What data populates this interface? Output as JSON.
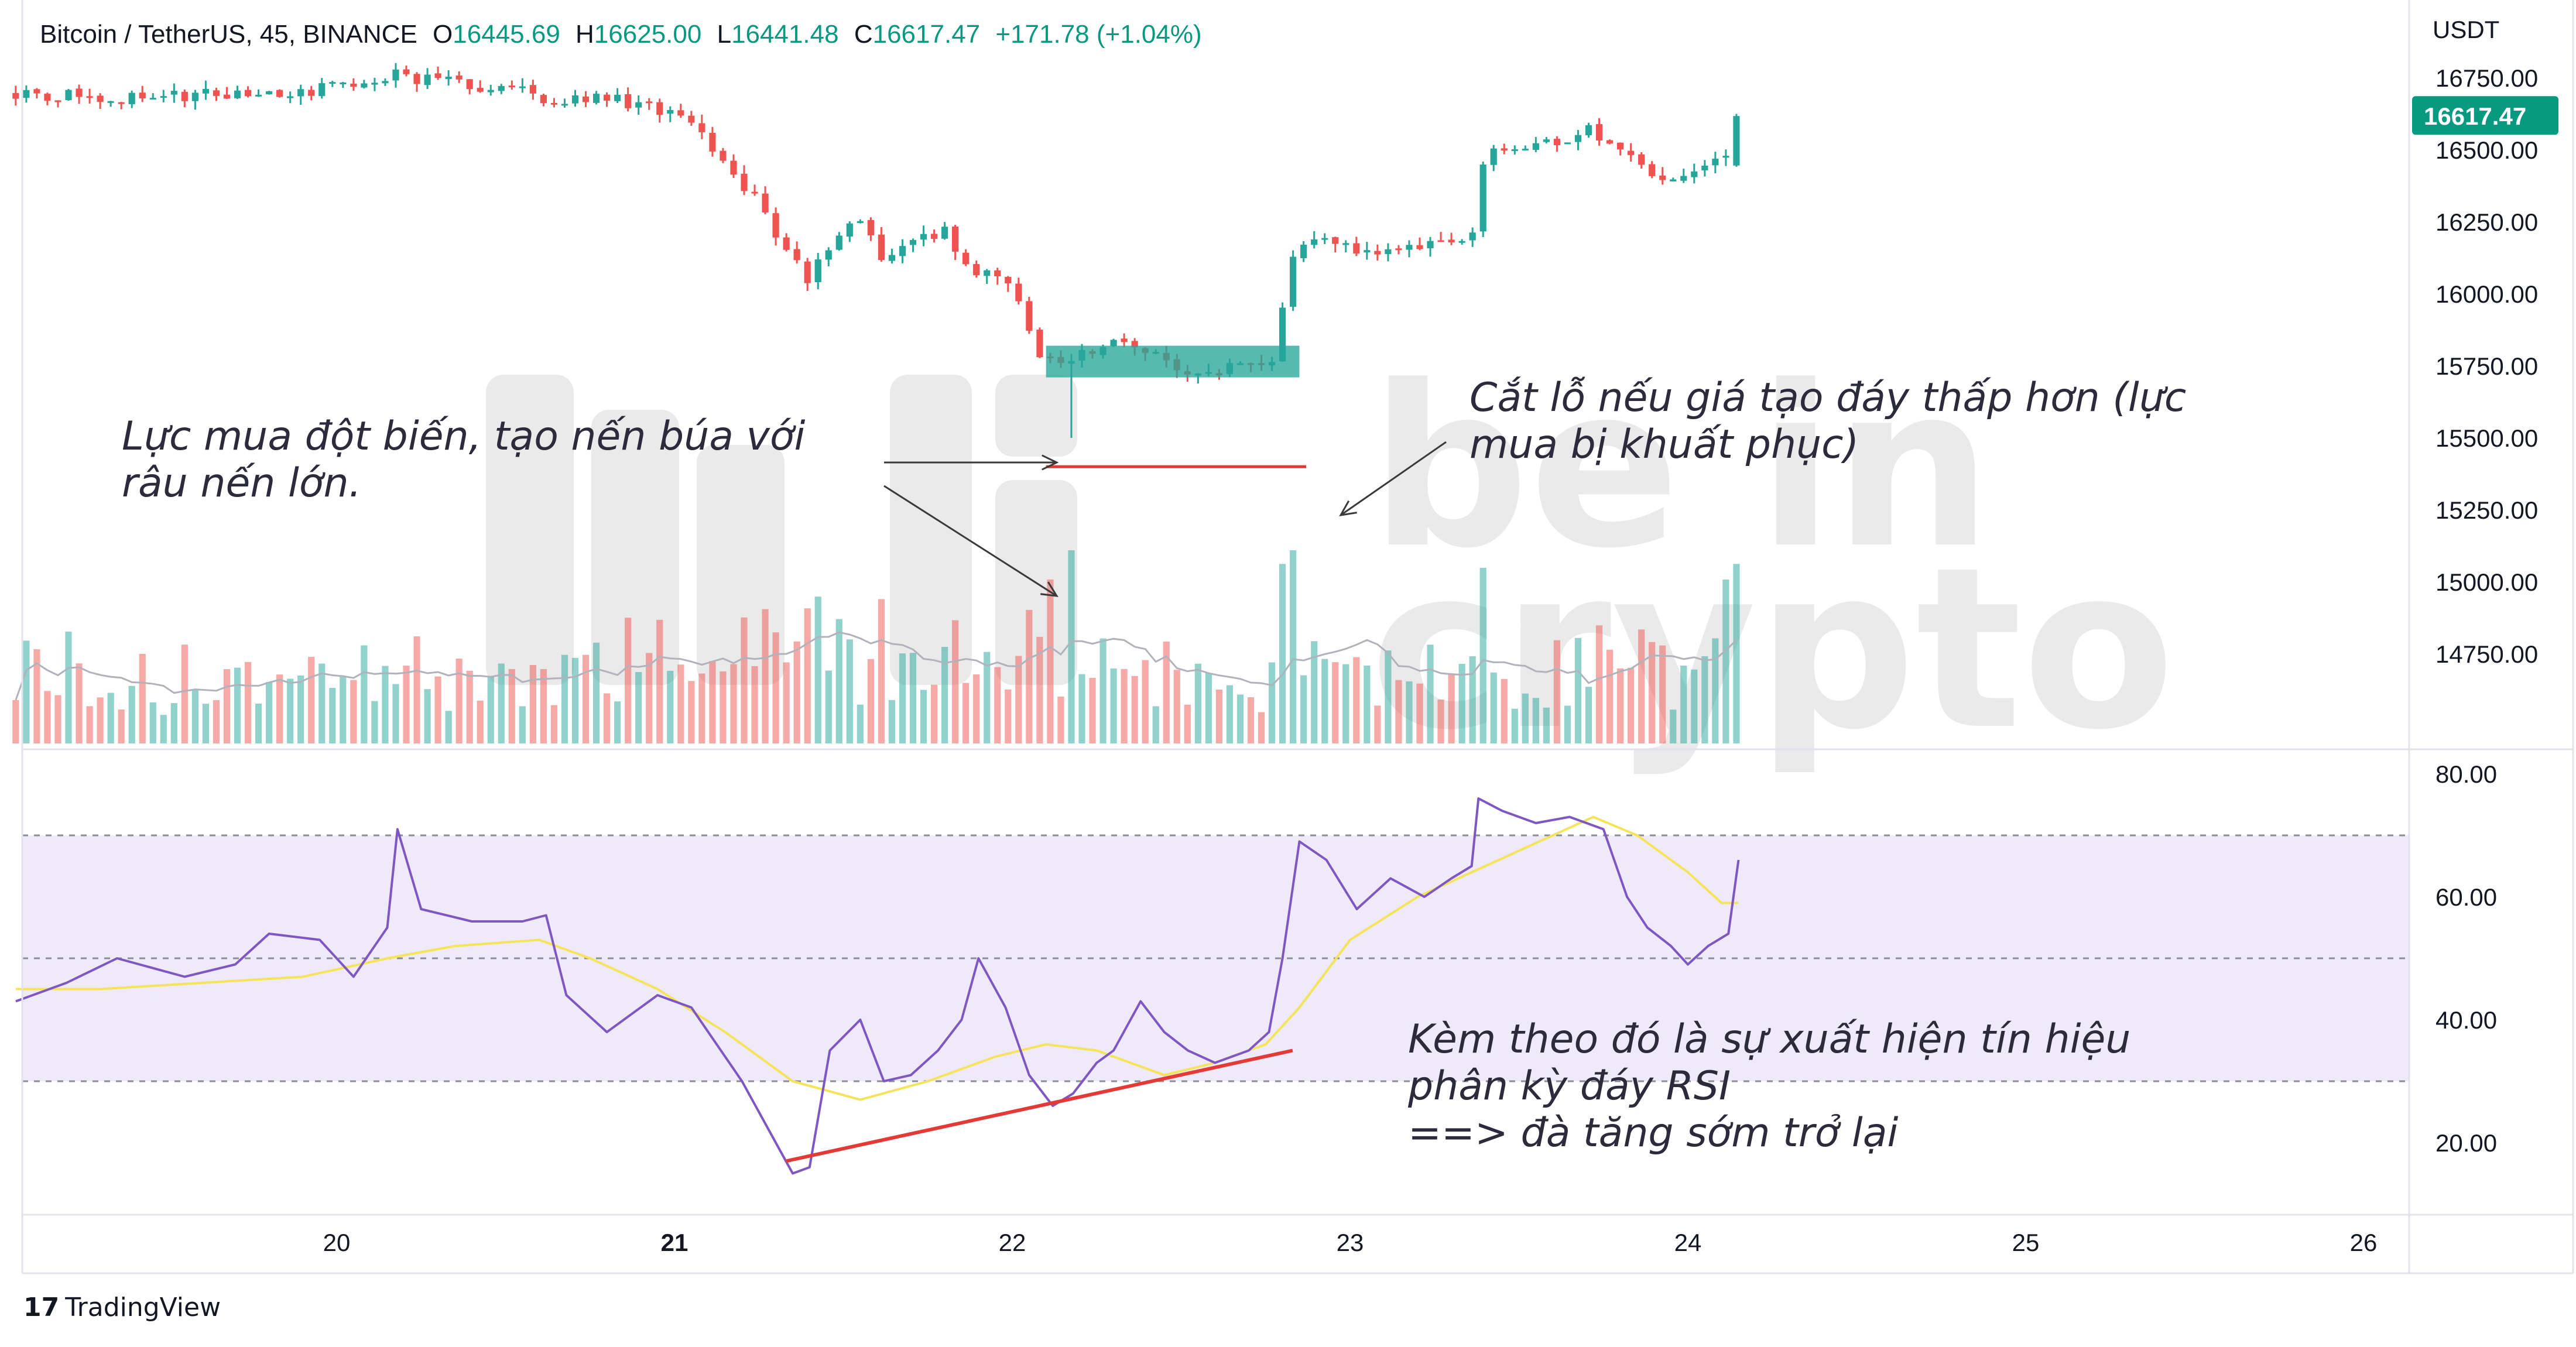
{
  "header": {
    "symbol": "Bitcoin / TetherUS, 45, BINANCE",
    "open_label": "O",
    "open": "16445.69",
    "high_label": "H",
    "high": "16625.00",
    "low_label": "L",
    "low": "16441.48",
    "close_label": "C",
    "close": "16617.47",
    "change": "+171.78 (+1.04%)"
  },
  "price_axis": {
    "currency": "USDT",
    "current_price": "16617.47",
    "ticks": [
      "16750.00",
      "16500.00",
      "16250.00",
      "16000.00",
      "15750.00",
      "15500.00",
      "15250.00",
      "15000.00",
      "14750.00"
    ]
  },
  "rsi_axis": {
    "ticks": [
      "80.00",
      "60.00",
      "40.00",
      "20.00"
    ],
    "upper_band": 70,
    "middle_band": 50,
    "lower_band": 30
  },
  "time_axis": {
    "labels": [
      "20",
      "21",
      "22",
      "23",
      "24",
      "25",
      "26"
    ]
  },
  "annotations": {
    "hammer_note_line1": "Lực mua đột biến, tạo nến búa với",
    "hammer_note_line2": "râu nến lớn.",
    "stoploss_note_line1": "Cắt lỗ nếu giá tạo đáy thấp hơn (lực",
    "stoploss_note_line2": "mua bị khuất phục)",
    "rsi_note_line1": "Kèm theo đó là sự xuất hiện tín hiệu",
    "rsi_note_line2": "phân kỳ đáy RSI",
    "rsi_note_line3": "==> đà tăng sớm trở lại"
  },
  "watermark": {
    "line1": "be in",
    "line2": "crypto"
  },
  "branding": {
    "logo_mark": "17",
    "name": "TradingView"
  },
  "colors": {
    "up": "#26a69a",
    "down": "#ef5350",
    "rsi_line": "#7e57c2",
    "rsi_ma": "#f5e35a",
    "rsi_band_fill": "#efeafa",
    "support_zone": "#26a69a",
    "stop_loss_line": "#e53935",
    "divergence_line": "#e53935",
    "price_badge": "#089981"
  },
  "chart_data": {
    "type": "candlestick",
    "timeframe": "45",
    "y_range": [
      14650,
      16900
    ],
    "rsi_range": [
      10,
      80
    ],
    "x_range_days": [
      19.5,
      26.1
    ],
    "price_path": [
      [
        19.05,
        16700
      ],
      [
        19.3,
        16680
      ],
      [
        19.6,
        16690
      ],
      [
        19.95,
        16710
      ],
      [
        20.18,
        16760
      ],
      [
        20.3,
        16740
      ],
      [
        20.5,
        16710
      ],
      [
        20.63,
        16680
      ],
      [
        20.8,
        16680
      ],
      [
        20.95,
        16640
      ],
      [
        21.05,
        16580
      ],
      [
        21.15,
        16450
      ],
      [
        21.25,
        16320
      ],
      [
        21.33,
        16150
      ],
      [
        21.4,
        16050
      ],
      [
        21.47,
        16200
      ],
      [
        21.55,
        16250
      ],
      [
        21.63,
        16100
      ],
      [
        21.72,
        16200
      ],
      [
        21.8,
        16220
      ],
      [
        21.88,
        16080
      ],
      [
        21.95,
        16060
      ],
      [
        22.02,
        15980
      ],
      [
        22.08,
        15800
      ],
      [
        22.15,
        15750
      ],
      [
        22.22,
        15800
      ],
      [
        22.3,
        15840
      ],
      [
        22.4,
        15800
      ],
      [
        22.5,
        15740
      ],
      [
        22.58,
        15720
      ],
      [
        22.68,
        15760
      ],
      [
        22.78,
        15780
      ],
      [
        22.82,
        16100
      ],
      [
        22.9,
        16200
      ],
      [
        23.0,
        16150
      ],
      [
        23.08,
        16120
      ],
      [
        23.15,
        16150
      ],
      [
        23.22,
        16170
      ],
      [
        23.3,
        16200
      ],
      [
        23.36,
        16200
      ],
      [
        23.4,
        16520
      ],
      [
        23.5,
        16480
      ],
      [
        23.6,
        16530
      ],
      [
        23.7,
        16570
      ],
      [
        23.78,
        16530
      ],
      [
        23.86,
        16430
      ],
      [
        23.93,
        16380
      ],
      [
        24.0,
        16430
      ],
      [
        24.06,
        16440
      ],
      [
        24.1,
        16455
      ],
      [
        24.15,
        16617.47
      ]
    ],
    "rsi_path": [
      [
        19.05,
        43
      ],
      [
        19.2,
        46
      ],
      [
        19.35,
        50
      ],
      [
        19.55,
        47
      ],
      [
        19.7,
        49
      ],
      [
        19.8,
        54
      ],
      [
        19.95,
        53
      ],
      [
        20.05,
        47
      ],
      [
        20.15,
        55
      ],
      [
        20.18,
        71
      ],
      [
        20.25,
        58
      ],
      [
        20.4,
        56
      ],
      [
        20.55,
        56
      ],
      [
        20.62,
        57
      ],
      [
        20.68,
        44
      ],
      [
        20.8,
        38
      ],
      [
        20.95,
        44
      ],
      [
        21.05,
        42
      ],
      [
        21.2,
        30
      ],
      [
        21.3,
        20
      ],
      [
        21.35,
        15
      ],
      [
        21.4,
        16
      ],
      [
        21.46,
        35
      ],
      [
        21.55,
        40
      ],
      [
        21.62,
        30
      ],
      [
        21.7,
        31
      ],
      [
        21.78,
        35
      ],
      [
        21.85,
        40
      ],
      [
        21.9,
        50
      ],
      [
        21.98,
        42
      ],
      [
        22.05,
        31
      ],
      [
        22.12,
        26
      ],
      [
        22.18,
        28
      ],
      [
        22.25,
        33
      ],
      [
        22.3,
        35
      ],
      [
        22.38,
        43
      ],
      [
        22.45,
        38
      ],
      [
        22.52,
        35
      ],
      [
        22.6,
        33
      ],
      [
        22.7,
        35
      ],
      [
        22.76,
        38
      ],
      [
        22.8,
        50
      ],
      [
        22.85,
        69
      ],
      [
        22.93,
        66
      ],
      [
        23.02,
        58
      ],
      [
        23.12,
        63
      ],
      [
        23.22,
        60
      ],
      [
        23.3,
        63
      ],
      [
        23.36,
        65
      ],
      [
        23.38,
        76
      ],
      [
        23.45,
        74
      ],
      [
        23.55,
        72
      ],
      [
        23.65,
        73
      ],
      [
        23.75,
        71
      ],
      [
        23.82,
        60
      ],
      [
        23.88,
        55
      ],
      [
        23.95,
        52
      ],
      [
        24.0,
        49
      ],
      [
        24.06,
        52
      ],
      [
        24.12,
        54
      ],
      [
        24.15,
        66
      ]
    ],
    "rsi_ma_path": [
      [
        19.05,
        45
      ],
      [
        19.3,
        45
      ],
      [
        19.6,
        46
      ],
      [
        19.9,
        47
      ],
      [
        20.15,
        50
      ],
      [
        20.35,
        52
      ],
      [
        20.6,
        53
      ],
      [
        20.75,
        50
      ],
      [
        20.95,
        45
      ],
      [
        21.15,
        38
      ],
      [
        21.35,
        30
      ],
      [
        21.55,
        27
      ],
      [
        21.75,
        30
      ],
      [
        21.95,
        34
      ],
      [
        22.1,
        36
      ],
      [
        22.25,
        35
      ],
      [
        22.45,
        31
      ],
      [
        22.6,
        33
      ],
      [
        22.75,
        36
      ],
      [
        22.85,
        42
      ],
      [
        23.0,
        53
      ],
      [
        23.2,
        60
      ],
      [
        23.4,
        65
      ],
      [
        23.6,
        70
      ],
      [
        23.72,
        73
      ],
      [
        23.85,
        70
      ],
      [
        24.0,
        64
      ],
      [
        24.1,
        59
      ],
      [
        24.15,
        59
      ]
    ],
    "support_zone": {
      "x_start": 22.1,
      "x_end": 22.85,
      "y_low": 15710,
      "y_high": 15820
    },
    "stop_loss_line": {
      "x_start": 22.1,
      "x_end": 22.87,
      "y": 15400
    },
    "rsi_divergence": {
      "from": [
        21.33,
        17
      ],
      "to": [
        22.83,
        35
      ]
    }
  }
}
